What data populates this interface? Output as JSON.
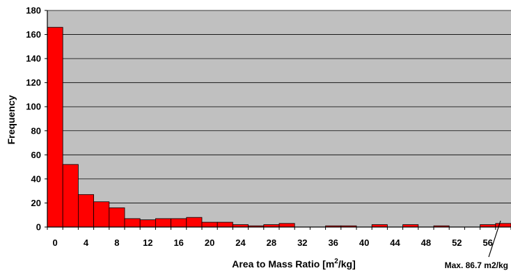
{
  "chart_data": {
    "type": "bar",
    "title": "",
    "xlabel_parts": {
      "main": "Area to Mass Ratio [m",
      "sup": "2",
      "tail": "/kg]"
    },
    "ylabel": "Frequency",
    "ylim": [
      0,
      180
    ],
    "y_ticks": [
      "0",
      "20",
      "40",
      "60",
      "80",
      "100",
      "120",
      "140",
      "160",
      "180"
    ],
    "x_tick_labels": [
      "0",
      "4",
      "8",
      "12",
      "16",
      "20",
      "24",
      "28",
      "32",
      "36",
      "40",
      "44",
      "48",
      "52",
      "56"
    ],
    "bin_width": 2,
    "bin_starts": [
      0,
      2,
      4,
      6,
      8,
      10,
      12,
      14,
      16,
      18,
      20,
      22,
      24,
      26,
      28,
      30,
      32,
      34,
      36,
      38,
      40,
      42,
      44,
      46,
      48,
      50,
      52,
      54,
      56,
      58
    ],
    "values": [
      166,
      52,
      27,
      21,
      16,
      7,
      6,
      7,
      7,
      8,
      4,
      4,
      2,
      1,
      2,
      3,
      0,
      0,
      1,
      1,
      0,
      2,
      0,
      2,
      0,
      1,
      0,
      0,
      2,
      3
    ],
    "grid": true,
    "legend": "none",
    "colors": {
      "plot_background": "#c0c0c0",
      "bar_fill": "#ff0000",
      "bar_stroke": "#000000",
      "gridline": "#000000"
    },
    "annotation": "Max.  86.7 m2/kg"
  }
}
